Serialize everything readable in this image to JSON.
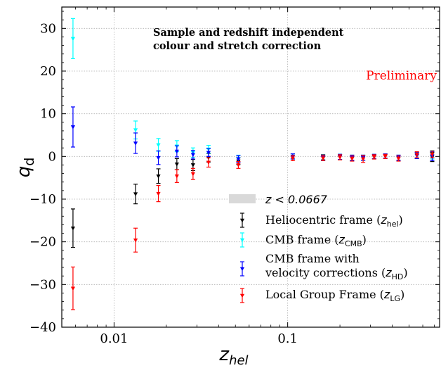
{
  "chart_data": {
    "type": "scatter",
    "title": "Sample and redshift  independent",
    "subtitle": "colour and stretch correction",
    "annotation": "Preliminary",
    "annotation_color": "#ff0000",
    "xlabel": "z",
    "xlabel_sub": "hel",
    "ylabel": "q",
    "ylabel_sub": "d",
    "xscale": "log",
    "xlim": [
      0.005,
      0.75
    ],
    "ylim": [
      -40,
      35
    ],
    "x_ticks": [
      {
        "value": 0.01,
        "label": "0.01"
      },
      {
        "value": 0.1,
        "label": "0.1"
      }
    ],
    "y_ticks": [
      {
        "value": 30,
        "label": "30"
      },
      {
        "value": 20,
        "label": "20"
      },
      {
        "value": 10,
        "label": "10"
      },
      {
        "value": 0,
        "label": "0"
      },
      {
        "value": -10,
        "label": "−10"
      },
      {
        "value": -20,
        "label": "−20"
      },
      {
        "value": -30,
        "label": "−30"
      },
      {
        "value": -40,
        "label": "−40"
      }
    ],
    "grid": true,
    "shaded_region": {
      "label": "z < 0.0667",
      "x_max": 0.0667,
      "color": "#d9d9d9"
    },
    "legend_position": "center-right",
    "series": [
      {
        "name": "Heliocentric frame",
        "sub": "hel",
        "color": "#000000",
        "points": [
          {
            "x": 0.0058,
            "y": -16.8,
            "err": 4.5
          },
          {
            "x": 0.0133,
            "y": -8.8,
            "err": 2.3
          },
          {
            "x": 0.018,
            "y": -4.6,
            "err": 1.7
          },
          {
            "x": 0.023,
            "y": -1.8,
            "err": 1.3
          },
          {
            "x": 0.0285,
            "y": -2.0,
            "err": 1.3
          },
          {
            "x": 0.035,
            "y": -0.3,
            "err": 1.0
          },
          {
            "x": 0.052,
            "y": -1.1,
            "err": 0.8
          },
          {
            "x": 0.107,
            "y": 0.0,
            "err": 0.6
          },
          {
            "x": 0.16,
            "y": -0.2,
            "err": 0.6
          },
          {
            "x": 0.2,
            "y": -0.1,
            "err": 0.6
          },
          {
            "x": 0.235,
            "y": -0.3,
            "err": 0.6
          },
          {
            "x": 0.272,
            "y": -0.3,
            "err": 0.6
          },
          {
            "x": 0.315,
            "y": -0.1,
            "err": 0.5
          },
          {
            "x": 0.365,
            "y": 0.1,
            "err": 0.5
          },
          {
            "x": 0.435,
            "y": -0.3,
            "err": 0.6
          },
          {
            "x": 0.555,
            "y": 0.2,
            "err": 0.7
          },
          {
            "x": 0.68,
            "y": -0.1,
            "err": 1.1
          }
        ]
      },
      {
        "name": "CMB frame",
        "sub": "CMB",
        "color": "#00ffff",
        "points": [
          {
            "x": 0.0058,
            "y": 27.6,
            "err": 4.7
          },
          {
            "x": 0.0133,
            "y": 6.2,
            "err": 2.1
          },
          {
            "x": 0.018,
            "y": 2.7,
            "err": 1.5
          },
          {
            "x": 0.023,
            "y": 2.4,
            "err": 1.3
          },
          {
            "x": 0.0285,
            "y": 0.9,
            "err": 1.1
          },
          {
            "x": 0.035,
            "y": 1.7,
            "err": 0.9
          },
          {
            "x": 0.052,
            "y": -0.5,
            "err": 0.8
          },
          {
            "x": 0.107,
            "y": 0.0,
            "err": 0.6
          },
          {
            "x": 0.16,
            "y": -0.3,
            "err": 0.6
          },
          {
            "x": 0.2,
            "y": -0.1,
            "err": 0.6
          },
          {
            "x": 0.235,
            "y": -0.3,
            "err": 0.6
          },
          {
            "x": 0.272,
            "y": -0.3,
            "err": 0.6
          },
          {
            "x": 0.315,
            "y": 0.0,
            "err": 0.5
          },
          {
            "x": 0.365,
            "y": 0.1,
            "err": 0.5
          },
          {
            "x": 0.435,
            "y": -0.3,
            "err": 0.6
          },
          {
            "x": 0.555,
            "y": 0.3,
            "err": 0.7
          },
          {
            "x": 0.68,
            "y": 0.4,
            "err": 1.0
          }
        ]
      },
      {
        "name": "CMB frame with velocity corrections",
        "sub": "HD",
        "color": "#0000ff",
        "points": [
          {
            "x": 0.0058,
            "y": 6.9,
            "err": 4.7
          },
          {
            "x": 0.0133,
            "y": 3.1,
            "err": 2.4
          },
          {
            "x": 0.018,
            "y": -0.3,
            "err": 1.6
          },
          {
            "x": 0.023,
            "y": 1.2,
            "err": 1.3
          },
          {
            "x": 0.0285,
            "y": 0.4,
            "err": 1.0
          },
          {
            "x": 0.035,
            "y": 0.9,
            "err": 0.9
          },
          {
            "x": 0.052,
            "y": -0.6,
            "err": 0.8
          },
          {
            "x": 0.107,
            "y": 0.0,
            "err": 0.6
          },
          {
            "x": 0.16,
            "y": -0.3,
            "err": 0.6
          },
          {
            "x": 0.2,
            "y": -0.1,
            "err": 0.6
          },
          {
            "x": 0.235,
            "y": -0.3,
            "err": 0.6
          },
          {
            "x": 0.272,
            "y": -0.3,
            "err": 0.6
          },
          {
            "x": 0.315,
            "y": 0.0,
            "err": 0.5
          },
          {
            "x": 0.365,
            "y": 0.1,
            "err": 0.5
          },
          {
            "x": 0.435,
            "y": -0.3,
            "err": 0.6
          },
          {
            "x": 0.555,
            "y": 0.2,
            "err": 0.7
          },
          {
            "x": 0.68,
            "y": 0.1,
            "err": 1.1
          }
        ]
      },
      {
        "name": "Local Group Frame",
        "sub": "LG",
        "color": "#ff0000",
        "points": [
          {
            "x": 0.0058,
            "y": -30.9,
            "err": 5.0
          },
          {
            "x": 0.0133,
            "y": -19.6,
            "err": 2.8
          },
          {
            "x": 0.018,
            "y": -8.7,
            "err": 1.9
          },
          {
            "x": 0.023,
            "y": -4.6,
            "err": 1.5
          },
          {
            "x": 0.0285,
            "y": -4.1,
            "err": 1.3
          },
          {
            "x": 0.035,
            "y": -1.4,
            "err": 1.1
          },
          {
            "x": 0.052,
            "y": -2.0,
            "err": 0.8
          },
          {
            "x": 0.107,
            "y": -0.4,
            "err": 0.6
          },
          {
            "x": 0.16,
            "y": -0.4,
            "err": 0.6
          },
          {
            "x": 0.2,
            "y": -0.2,
            "err": 0.6
          },
          {
            "x": 0.235,
            "y": -0.5,
            "err": 0.6
          },
          {
            "x": 0.272,
            "y": -0.6,
            "err": 0.8
          },
          {
            "x": 0.315,
            "y": -0.1,
            "err": 0.5
          },
          {
            "x": 0.365,
            "y": 0.0,
            "err": 0.5
          },
          {
            "x": 0.435,
            "y": -0.5,
            "err": 0.6
          },
          {
            "x": 0.555,
            "y": 0.4,
            "err": 0.7
          },
          {
            "x": 0.68,
            "y": 0.5,
            "err": 0.8
          }
        ]
      }
    ]
  }
}
